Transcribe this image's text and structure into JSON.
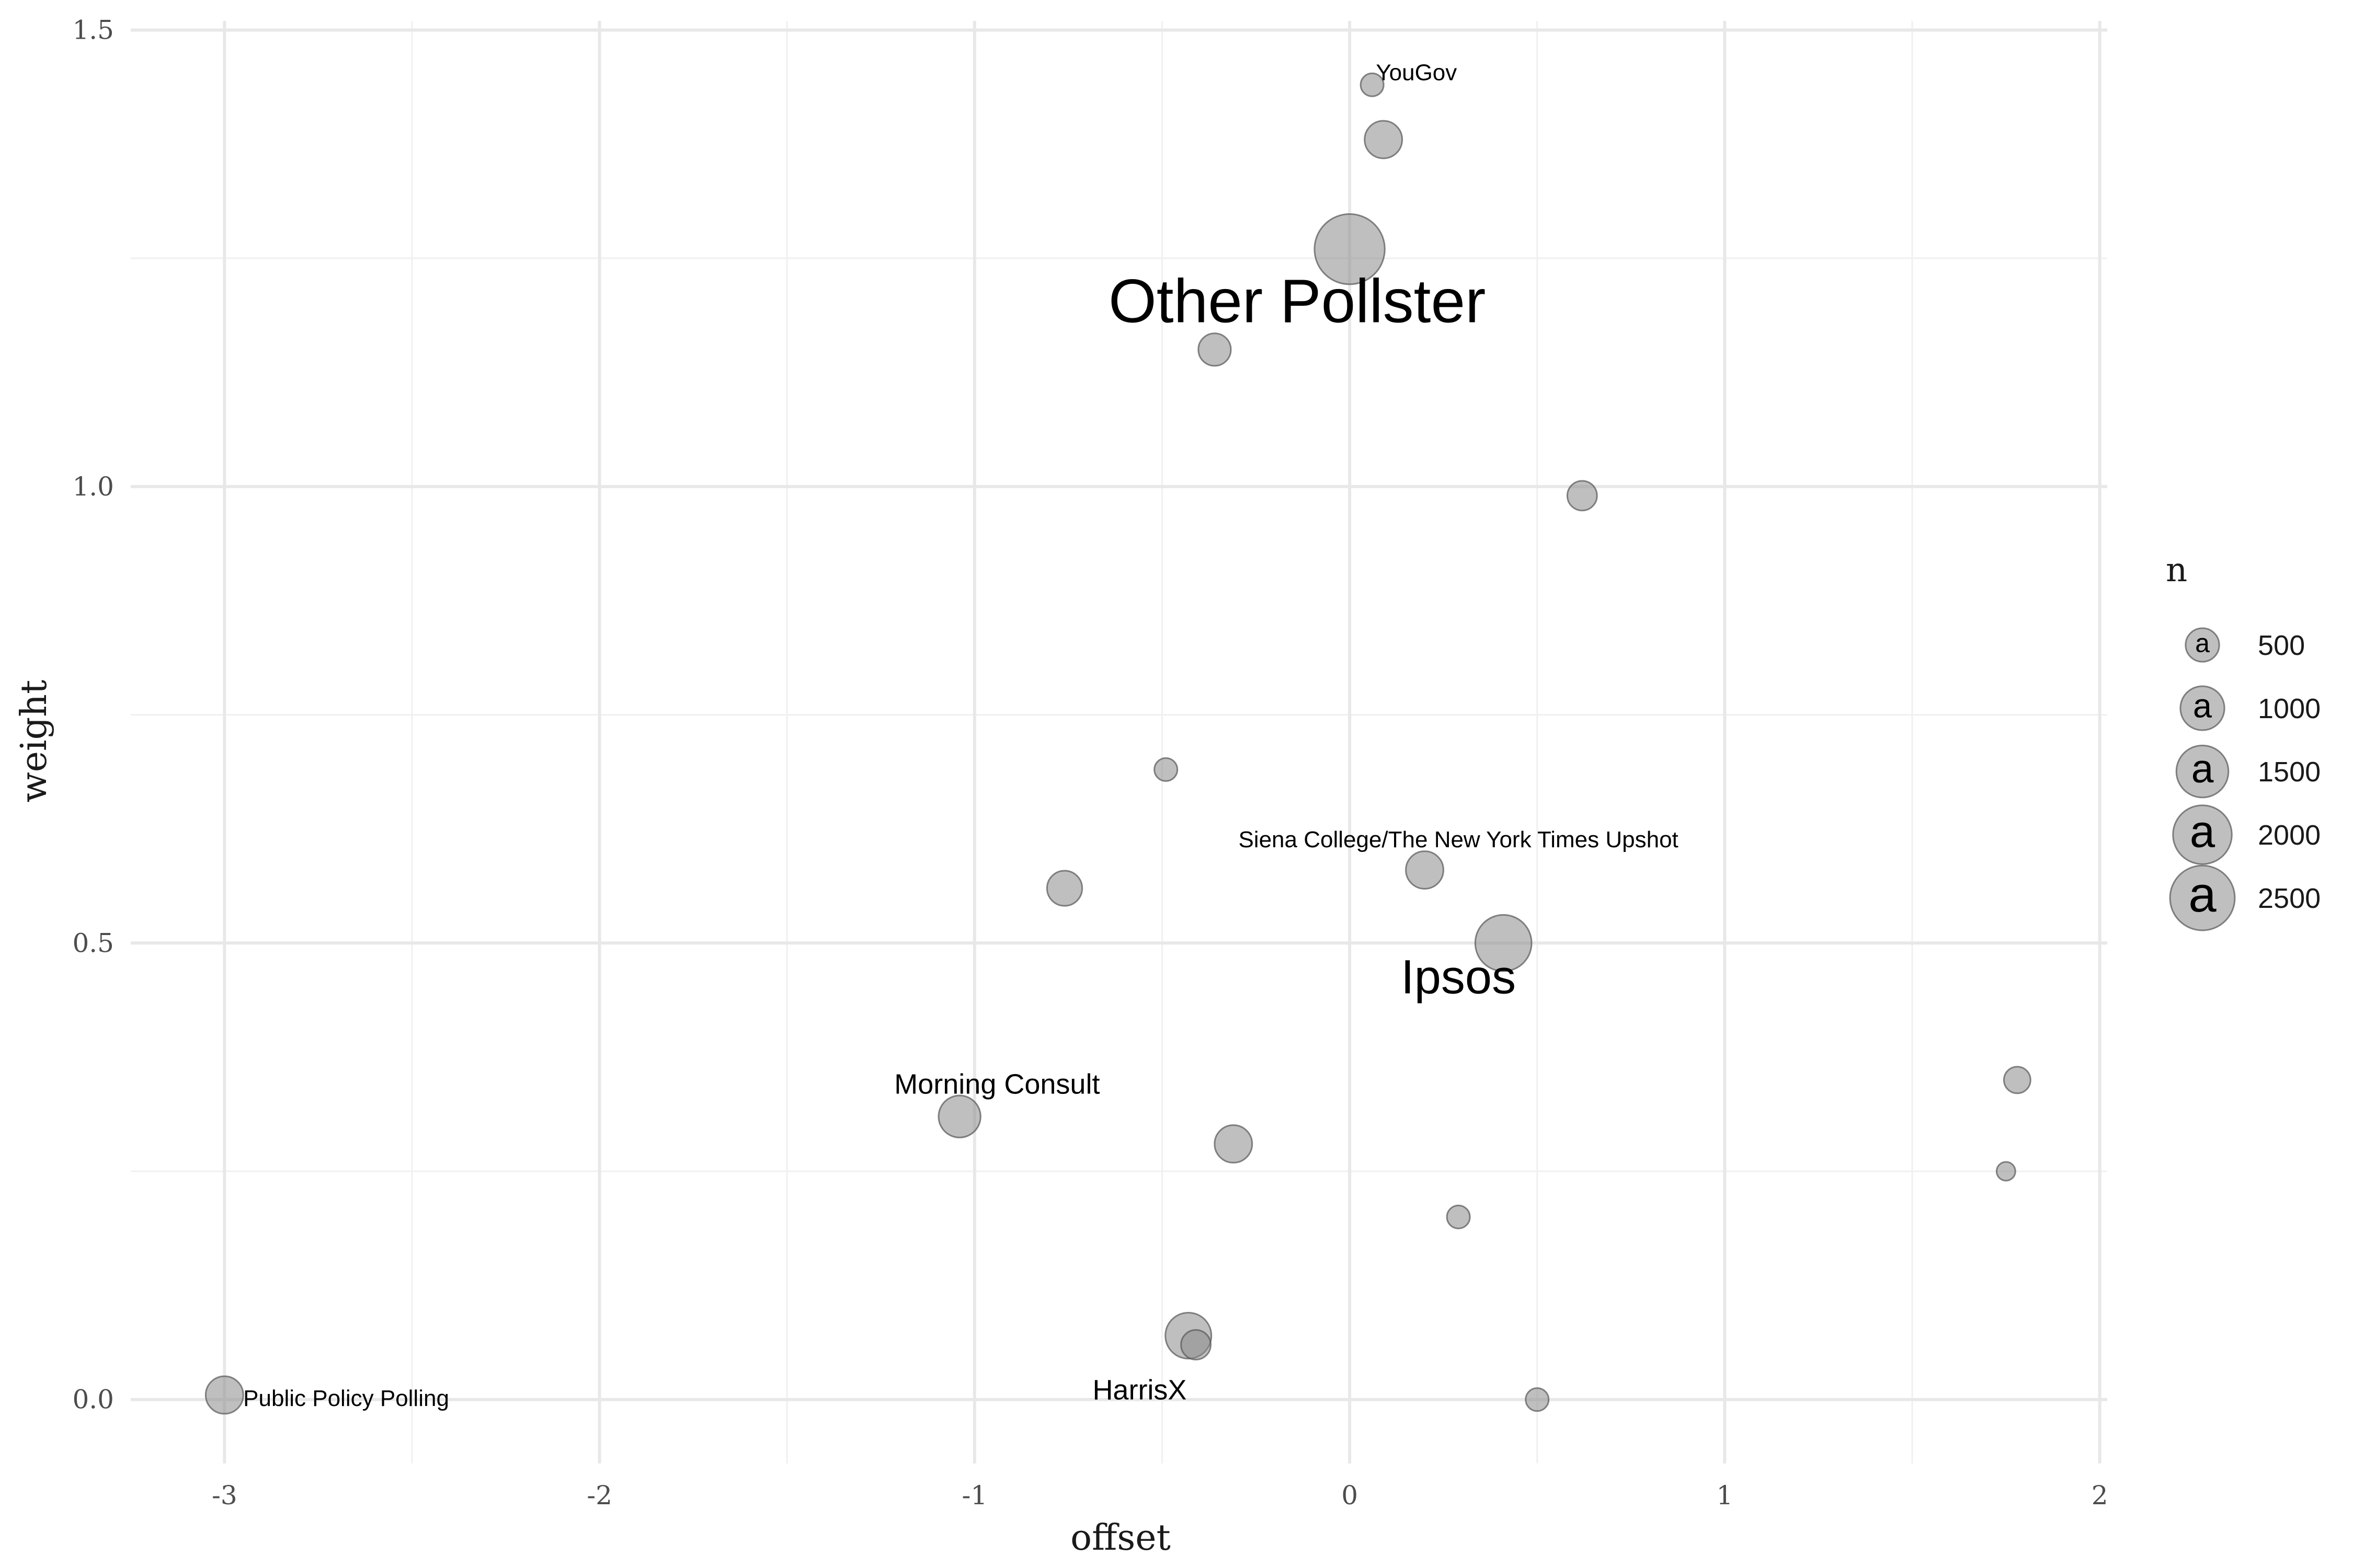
{
  "chart_data": {
    "type": "scatter",
    "xlabel": "offset",
    "ylabel": "weight",
    "xlim": [
      -3.25,
      2.02
    ],
    "ylim": [
      -0.07,
      1.51
    ],
    "x_ticks": [
      -3,
      -2,
      -1,
      0,
      1,
      2
    ],
    "x_tick_labels": [
      "-3",
      "-2",
      "-1",
      "0",
      "1",
      "2"
    ],
    "y_ticks": [
      0,
      0.5,
      1,
      1.5
    ],
    "y_tick_labels": [
      "0.0",
      "0.5",
      "1.0",
      "1.5"
    ],
    "grid": true,
    "legend": {
      "title": "n",
      "placement": "right",
      "entries": [
        {
          "value": 500,
          "label": "500"
        },
        {
          "value": 1000,
          "label": "1000"
        },
        {
          "value": 1500,
          "label": "1500"
        },
        {
          "value": 2000,
          "label": "2000"
        },
        {
          "value": 2500,
          "label": "2500"
        }
      ],
      "glyph": "a"
    },
    "points": [
      {
        "x": 0.06,
        "y": 1.44,
        "n": 300
      },
      {
        "x": 0.09,
        "y": 1.38,
        "n": 800
      },
      {
        "x": 0.0,
        "y": 1.26,
        "n": 2800
      },
      {
        "x": -0.36,
        "y": 1.15,
        "n": 600
      },
      {
        "x": 0.62,
        "y": 0.99,
        "n": 500
      },
      {
        "x": -0.49,
        "y": 0.69,
        "n": 300
      },
      {
        "x": -0.76,
        "y": 0.56,
        "n": 700
      },
      {
        "x": 0.2,
        "y": 0.58,
        "n": 800
      },
      {
        "x": 0.41,
        "y": 0.5,
        "n": 1800
      },
      {
        "x": 1.78,
        "y": 0.35,
        "n": 400
      },
      {
        "x": -1.04,
        "y": 0.31,
        "n": 1000
      },
      {
        "x": -0.31,
        "y": 0.28,
        "n": 800
      },
      {
        "x": 1.75,
        "y": 0.25,
        "n": 200
      },
      {
        "x": 0.29,
        "y": 0.2,
        "n": 300
      },
      {
        "x": -0.43,
        "y": 0.07,
        "n": 1200
      },
      {
        "x": -0.41,
        "y": 0.06,
        "n": 500
      },
      {
        "x": -3.0,
        "y": 0.005,
        "n": 800
      },
      {
        "x": 0.5,
        "y": 0.0,
        "n": 300
      }
    ],
    "annotations": [
      {
        "text": "YouGov",
        "x": 0.07,
        "y": 1.39,
        "anchor": "start",
        "size": "small",
        "dx": 0.0,
        "dy": 0.055
      },
      {
        "text": "Other Pollster",
        "x": 0.0,
        "y": 1.26,
        "anchor": "middle",
        "size": "large",
        "dx": -0.14,
        "dy": -0.08
      },
      {
        "text": "Siena College/The New York Times Upshot",
        "x": 0.2,
        "y": 0.58,
        "anchor": "middle",
        "size": "small",
        "dx": 0.09,
        "dy": 0.025
      },
      {
        "text": "Ipsos",
        "x": 0.41,
        "y": 0.5,
        "anchor": "middle",
        "size": "medium",
        "dx": -0.12,
        "dy": -0.055
      },
      {
        "text": "Morning Consult",
        "x": -1.04,
        "y": 0.31,
        "anchor": "middle",
        "size": "medium_small",
        "dx": 0.1,
        "dy": 0.025
      },
      {
        "text": "HarrisX",
        "x": -0.43,
        "y": 0.07,
        "anchor": "middle",
        "size": "medium_small",
        "dx": -0.13,
        "dy": -0.07
      },
      {
        "text": "Public Policy Polling",
        "x": -3.0,
        "y": 0.005,
        "anchor": "start",
        "size": "small",
        "dx": 0.05,
        "dy": -0.012
      }
    ]
  }
}
